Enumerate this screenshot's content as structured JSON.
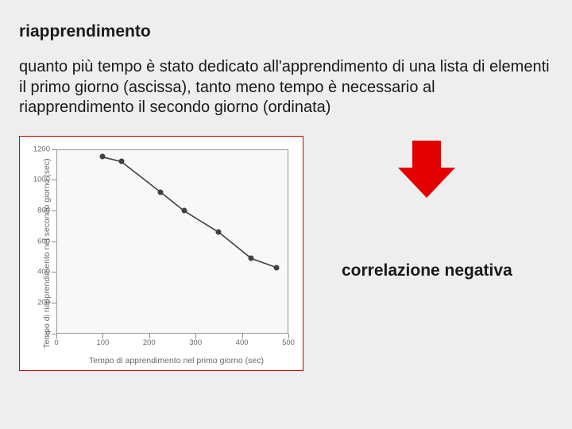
{
  "title": "riapprendimento",
  "paragraph": "quanto più tempo è stato dedicato all'apprendimento di una lista di elementi il primo giorno (ascissa), tanto meno tempo è necessario al riapprendimento il secondo giorno (ordinata)",
  "caption": "correlazione negativa",
  "chart": {
    "type": "line",
    "xlabel": "Tempo di apprendimento nel primo giorno (sec)",
    "ylabel": "Tempo di riapprendimento nel secondo giorno (sec)",
    "xlim": [
      0,
      500
    ],
    "ylim": [
      0,
      1200
    ],
    "xtick_step": 100,
    "ytick_step": 200,
    "xticks": [
      0,
      100,
      200,
      300,
      400,
      500
    ],
    "yticks": [
      0,
      200,
      400,
      600,
      800,
      1000,
      1200
    ],
    "x": [
      100,
      140,
      225,
      275,
      350,
      420,
      475
    ],
    "y": [
      1150,
      1120,
      920,
      800,
      660,
      490,
      430
    ],
    "line_color": "#404040",
    "line_width": 1.6,
    "marker_color": "#404040",
    "marker_size": 7,
    "background_color": "#f8f8f8",
    "frame_color": "#9a9a9a",
    "tick_fontsize": 9.5,
    "label_fontsize": 10.5,
    "label_color": "#6a6a6a",
    "chart_border_color": "#d40000"
  },
  "arrow_color": "#e30000",
  "page_background": "#eeeeee"
}
